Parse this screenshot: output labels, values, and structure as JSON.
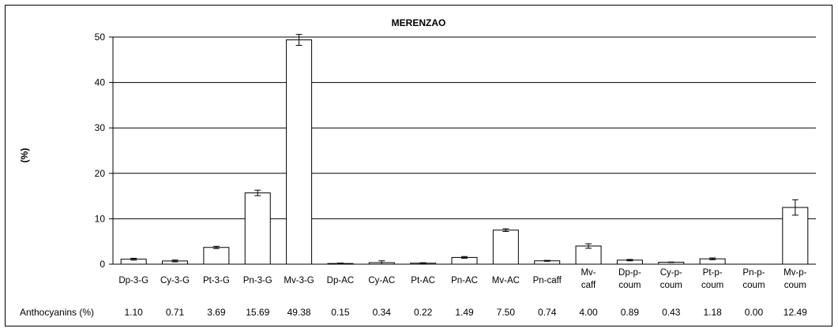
{
  "chart_data": {
    "type": "bar",
    "title": "MERENZAO",
    "ylabel": "(%)",
    "ylim": [
      0,
      50
    ],
    "yticks": [
      0,
      10,
      20,
      30,
      40,
      50
    ],
    "grid": true,
    "categories": [
      [
        "Dp-3-G"
      ],
      [
        "Cy-3-G"
      ],
      [
        "Pt-3-G"
      ],
      [
        "Pn-3-G"
      ],
      [
        "Mv-3-G"
      ],
      [
        "Dp-AC"
      ],
      [
        "Cy-AC"
      ],
      [
        "Pt-AC"
      ],
      [
        "Pn-AC"
      ],
      [
        "Mv-AC"
      ],
      [
        "Pn-caff"
      ],
      [
        "Mv-",
        "caff"
      ],
      [
        "Dp-p-",
        "coum"
      ],
      [
        "Cy-p-",
        "coum"
      ],
      [
        "Pt-p-",
        "coum"
      ],
      [
        "Pn-p-",
        "coum"
      ],
      [
        "Mv-p-",
        "coum"
      ]
    ],
    "values": [
      1.1,
      0.71,
      3.69,
      15.69,
      49.38,
      0.15,
      0.34,
      0.22,
      1.49,
      7.5,
      0.74,
      4.0,
      0.89,
      0.43,
      1.18,
      0.0,
      12.49
    ],
    "value_labels": [
      "1.10",
      "0.71",
      "3.69",
      "15.69",
      "49.38",
      "0.15",
      "0.34",
      "0.22",
      "1.49",
      "7.50",
      "0.74",
      "4.00",
      "0.89",
      "0.43",
      "1.18",
      "0.00",
      "12.49"
    ],
    "error": [
      0.2,
      0.2,
      0.25,
      0.6,
      1.2,
      0.1,
      0.4,
      0.1,
      0.2,
      0.3,
      0.1,
      0.5,
      0.15,
      0.05,
      0.2,
      0.0,
      1.7
    ],
    "table_row_label": "Anthocyanins (%)"
  }
}
